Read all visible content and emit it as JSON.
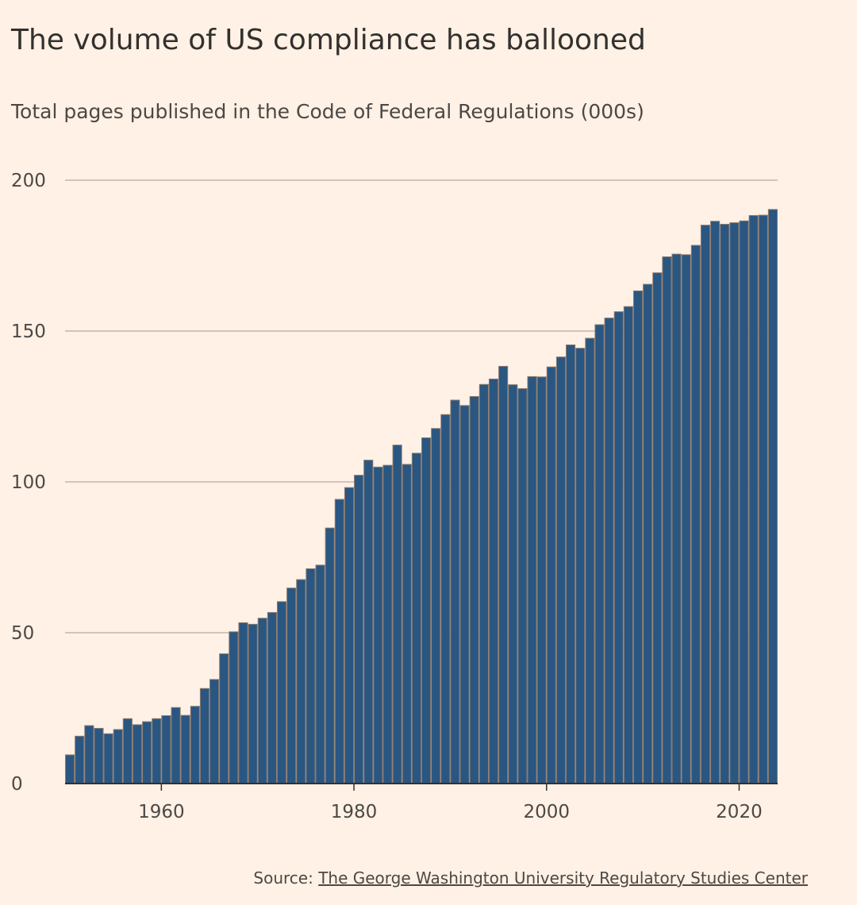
{
  "title": "The volume of US compliance has ballooned",
  "subtitle": "Total pages published in the Code of Federal Regulations (000s)",
  "source": {
    "label": "Source: ",
    "link_text": "The George Washington University Regulatory Studies Center"
  },
  "colors": {
    "bar": "#2a5682",
    "bar_edge": "#8a7a6e",
    "grid": "#c2b5ac",
    "background": "#fff1e5"
  },
  "chart_data": {
    "type": "bar",
    "title": "The volume of US compliance has ballooned",
    "subtitle": "Total pages published in the Code of Federal Regulations (000s)",
    "xlabel": "",
    "ylabel": "",
    "ylim": [
      0,
      200
    ],
    "yticks": [
      0,
      50,
      100,
      150,
      200
    ],
    "xticks": [
      1960,
      1980,
      2000,
      2020
    ],
    "grid": true,
    "x": [
      1950,
      1951,
      1952,
      1953,
      1954,
      1955,
      1956,
      1957,
      1958,
      1959,
      1960,
      1961,
      1962,
      1963,
      1964,
      1965,
      1966,
      1967,
      1968,
      1969,
      1970,
      1971,
      1972,
      1973,
      1974,
      1975,
      1976,
      1977,
      1978,
      1979,
      1980,
      1981,
      1982,
      1983,
      1984,
      1985,
      1986,
      1987,
      1988,
      1989,
      1990,
      1991,
      1992,
      1993,
      1994,
      1995,
      1996,
      1997,
      1998,
      1999,
      2000,
      2001,
      2002,
      2003,
      2004,
      2005,
      2006,
      2007,
      2008,
      2009,
      2010,
      2011,
      2012,
      2013,
      2014,
      2015,
      2016,
      2017,
      2018,
      2019,
      2020,
      2021,
      2022,
      2023
    ],
    "values": [
      9.5,
      15.7,
      19.2,
      18.3,
      16.5,
      17.9,
      21.5,
      19.5,
      20.5,
      21.5,
      22.5,
      25.2,
      22.6,
      25.6,
      31.5,
      34.5,
      43,
      50.3,
      53.3,
      52.8,
      54.8,
      56.7,
      60.3,
      64.8,
      67.6,
      71.2,
      72.4,
      84.7,
      94.2,
      98.1,
      102.2,
      107.2,
      104.9,
      105.5,
      112.2,
      105.8,
      109.5,
      114.6,
      117.7,
      122.3,
      127.1,
      125.3,
      128.3,
      132.3,
      134.1,
      138.3,
      132.2,
      130.9,
      134.9,
      134.8,
      138.1,
      141.4,
      145.4,
      144.3,
      147.6,
      152.1,
      154.3,
      156.4,
      158.1,
      163.3,
      165.5,
      169.3,
      174.6,
      175.5,
      175.3,
      178.4,
      185.1,
      186.4,
      185.4,
      185.9,
      186.5,
      188.3,
      188.4,
      190.3
    ]
  }
}
